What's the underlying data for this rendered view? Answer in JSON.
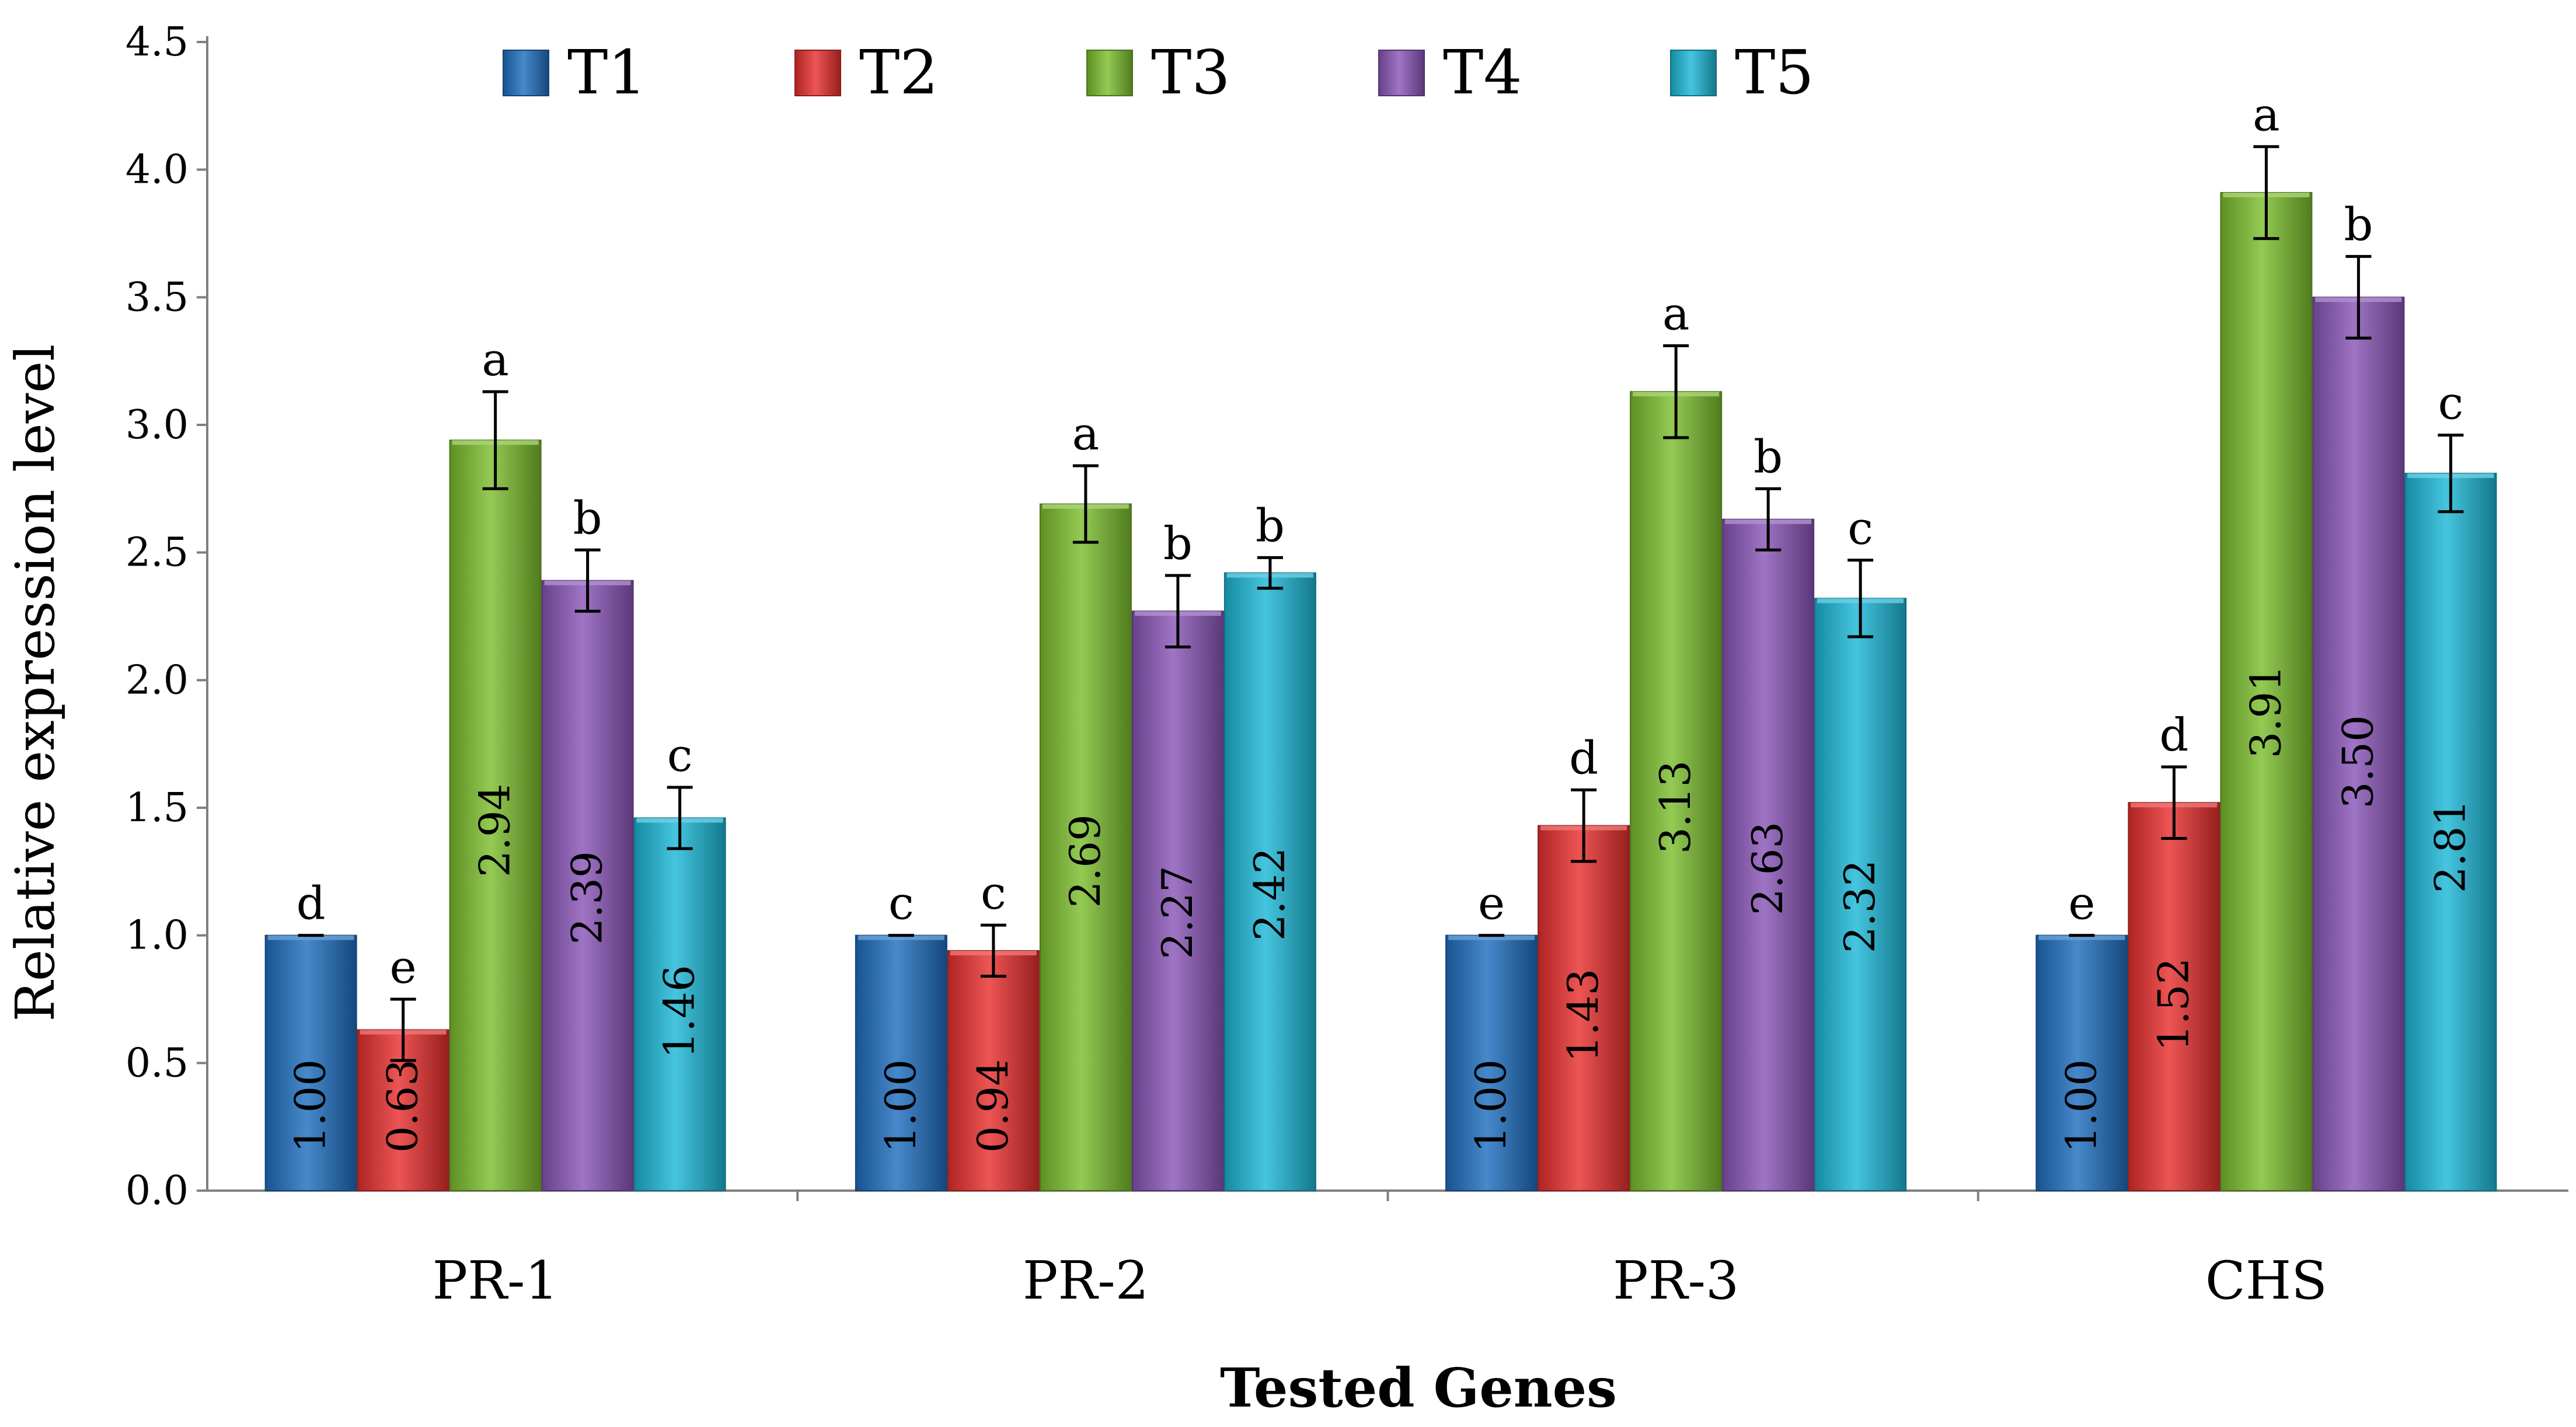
{
  "chart_data": {
    "type": "bar",
    "title": "",
    "xlabel": "Tested Genes",
    "ylabel": "Relative expression level",
    "ylim": [
      0,
      4.5
    ],
    "yticks": [
      "0.0",
      "0.5",
      "1.0",
      "1.5",
      "2.0",
      "2.5",
      "3.0",
      "3.5",
      "4.0",
      "4.5"
    ],
    "grid": false,
    "legend_position": "top",
    "categories": [
      "PR-1",
      "PR-2",
      "PR-3",
      "CHS"
    ],
    "series": [
      {
        "name": "T1",
        "color": "#1f6fc0",
        "values": [
          1.0,
          1.0,
          1.0,
          1.0
        ],
        "value_labels": [
          "1.00",
          "1.00",
          "1.00",
          "1.00"
        ],
        "errors": [
          0.0,
          0.0,
          0.0,
          0.0
        ],
        "letters": [
          "d",
          "c",
          "e",
          "e"
        ]
      },
      {
        "name": "T2",
        "color": "#e8302e",
        "values": [
          0.63,
          0.94,
          1.43,
          1.52
        ],
        "value_labels": [
          "0.63",
          "0.94",
          "1.43",
          "1.52"
        ],
        "errors": [
          0.12,
          0.1,
          0.14,
          0.14
        ],
        "letters": [
          "e",
          "c",
          "d",
          "d"
        ]
      },
      {
        "name": "T3",
        "color": "#7dbe2e",
        "values": [
          2.94,
          2.69,
          3.13,
          3.91
        ],
        "value_labels": [
          "2.94",
          "2.69",
          "3.13",
          "3.91"
        ],
        "errors": [
          0.19,
          0.15,
          0.18,
          0.18
        ],
        "letters": [
          "a",
          "a",
          "a",
          "a"
        ]
      },
      {
        "name": "T4",
        "color": "#8a56b8",
        "values": [
          2.39,
          2.27,
          2.63,
          3.5
        ],
        "value_labels": [
          "2.39",
          "2.27",
          "2.63",
          "3.50"
        ],
        "errors": [
          0.12,
          0.14,
          0.12,
          0.16
        ],
        "letters": [
          "b",
          "b",
          "b",
          "b"
        ]
      },
      {
        "name": "T5",
        "color": "#1db8d8",
        "values": [
          1.46,
          2.42,
          2.32,
          2.81
        ],
        "value_labels": [
          "1.46",
          "2.42",
          "2.32",
          "2.81"
        ],
        "errors": [
          0.12,
          0.06,
          0.15,
          0.15
        ],
        "letters": [
          "c",
          "b",
          "c",
          "c"
        ]
      }
    ]
  }
}
